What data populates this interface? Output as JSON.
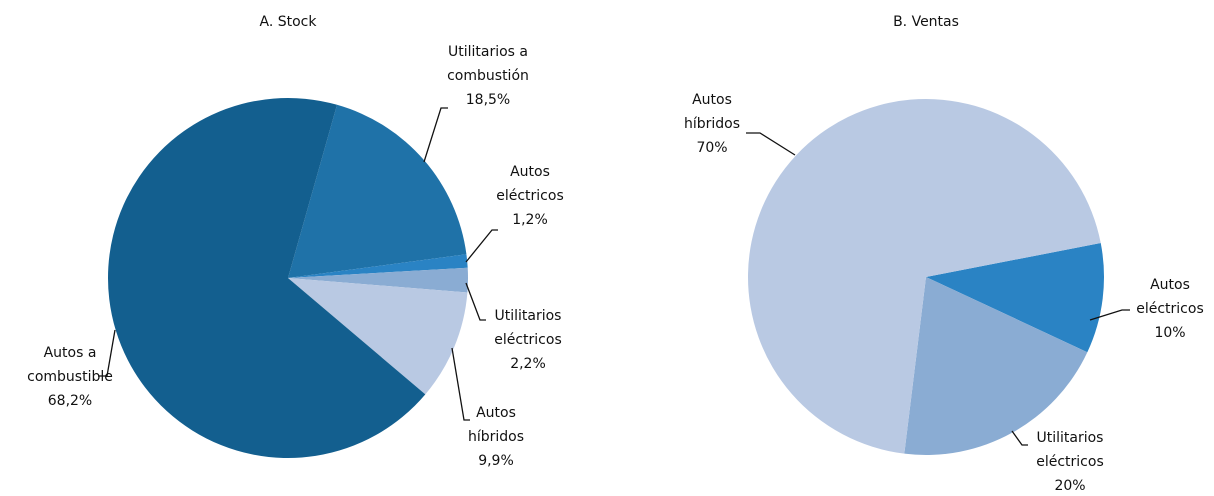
{
  "chart_data": [
    {
      "type": "pie",
      "title": "A. Stock",
      "categories": [
        "Utilitarios a combustión",
        "Autos eléctricos",
        "Utilitarios eléctricos",
        "Autos híbridos",
        "Autos a combustible"
      ],
      "values": [
        18.5,
        1.2,
        2.2,
        9.9,
        68.2
      ],
      "value_labels": [
        "18,5%",
        "1,2%",
        "2,2%",
        "9,9%",
        "68,2%"
      ],
      "colors": [
        "#1f72a8",
        "#2a83c4",
        "#8aacd3",
        "#b9c9e3",
        "#135f8f"
      ]
    },
    {
      "type": "pie",
      "title": "B. Ventas",
      "categories": [
        "Autos eléctricos",
        "Utilitarios eléctricos",
        "Autos híbridos"
      ],
      "values": [
        10,
        20,
        70
      ],
      "value_labels": [
        "10%",
        "20%",
        "70%"
      ],
      "colors": [
        "#2a83c4",
        "#8aacd3",
        "#b9c9e3"
      ]
    }
  ]
}
